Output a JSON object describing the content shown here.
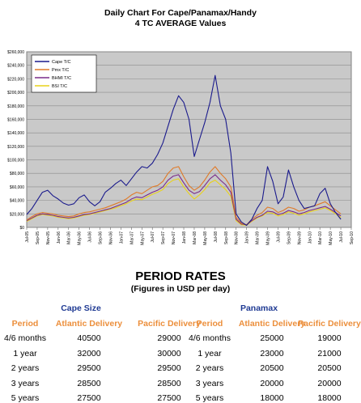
{
  "title_line1": "Daily Chart For Cape/Panamax/Handy",
  "title_line2": "4 TC AVERAGE Values",
  "chart_data": {
    "type": "line",
    "y_ticks": [
      "$0",
      "$20,000",
      "$40,000",
      "$60,000",
      "$80,000",
      "$100,000",
      "$120,000",
      "$140,000",
      "$160,000",
      "$180,000",
      "$200,000",
      "$220,000",
      "$240,000",
      "$260,000"
    ],
    "ylim": [
      0,
      260000
    ],
    "x_ticks": [
      "Jul-05",
      "Sep-05",
      "Nov-05",
      "Jan-06",
      "Mar-06",
      "May-06",
      "Jul-06",
      "Sep-06",
      "Nov-06",
      "Jan-07",
      "Mar-07",
      "May-07",
      "Jul-07",
      "Sep-07",
      "Nov-07",
      "Jan-08",
      "Mar-08",
      "May-08",
      "Jul-08",
      "Sep-08",
      "Nov-08",
      "Jan-09",
      "Mar-09",
      "May-09",
      "Jul-09",
      "Sep-09",
      "Nov-09",
      "Jan-10",
      "Mar-10",
      "May-10",
      "Jul-10",
      "Sep-10"
    ],
    "xlim": [
      0,
      62
    ],
    "grid": true,
    "legend_position": "top-left",
    "series": [
      {
        "name": "Cape T/C",
        "color": "#1a1a8c",
        "points": [
          [
            0,
            19000
          ],
          [
            1,
            28000
          ],
          [
            2,
            40000
          ],
          [
            3,
            52000
          ],
          [
            4,
            55000
          ],
          [
            5,
            47000
          ],
          [
            6,
            42000
          ],
          [
            7,
            36000
          ],
          [
            8,
            33000
          ],
          [
            9,
            35000
          ],
          [
            10,
            44000
          ],
          [
            11,
            48000
          ],
          [
            12,
            38000
          ],
          [
            13,
            32000
          ],
          [
            14,
            38000
          ],
          [
            15,
            52000
          ],
          [
            16,
            58000
          ],
          [
            17,
            65000
          ],
          [
            18,
            70000
          ],
          [
            19,
            62000
          ],
          [
            20,
            72000
          ],
          [
            21,
            82000
          ],
          [
            22,
            90000
          ],
          [
            23,
            88000
          ],
          [
            24,
            95000
          ],
          [
            25,
            108000
          ],
          [
            26,
            125000
          ],
          [
            27,
            150000
          ],
          [
            28,
            175000
          ],
          [
            29,
            195000
          ],
          [
            30,
            185000
          ],
          [
            31,
            160000
          ],
          [
            32,
            105000
          ],
          [
            33,
            130000
          ],
          [
            34,
            155000
          ],
          [
            35,
            185000
          ],
          [
            36,
            225000
          ],
          [
            37,
            180000
          ],
          [
            38,
            160000
          ],
          [
            39,
            110000
          ],
          [
            40,
            20000
          ],
          [
            41,
            8000
          ],
          [
            42,
            3000
          ],
          [
            43,
            12000
          ],
          [
            44,
            28000
          ],
          [
            45,
            40000
          ],
          [
            46,
            90000
          ],
          [
            47,
            68000
          ],
          [
            48,
            35000
          ],
          [
            49,
            45000
          ],
          [
            50,
            85000
          ],
          [
            51,
            60000
          ],
          [
            52,
            40000
          ],
          [
            53,
            28000
          ],
          [
            54,
            30000
          ],
          [
            55,
            32000
          ],
          [
            56,
            50000
          ],
          [
            57,
            58000
          ],
          [
            58,
            35000
          ],
          [
            59,
            22000
          ],
          [
            60,
            12000
          ]
        ]
      },
      {
        "name": "Pmx T/C",
        "color": "#e07a28",
        "points": [
          [
            0,
            11000
          ],
          [
            1,
            16000
          ],
          [
            2,
            20000
          ],
          [
            3,
            22000
          ],
          [
            4,
            21000
          ],
          [
            5,
            20000
          ],
          [
            6,
            18000
          ],
          [
            7,
            17000
          ],
          [
            8,
            16000
          ],
          [
            9,
            17000
          ],
          [
            10,
            20000
          ],
          [
            11,
            22000
          ],
          [
            12,
            23000
          ],
          [
            13,
            25000
          ],
          [
            14,
            27000
          ],
          [
            15,
            29000
          ],
          [
            16,
            32000
          ],
          [
            17,
            35000
          ],
          [
            18,
            38000
          ],
          [
            19,
            42000
          ],
          [
            20,
            48000
          ],
          [
            21,
            52000
          ],
          [
            22,
            50000
          ],
          [
            23,
            55000
          ],
          [
            24,
            60000
          ],
          [
            25,
            62000
          ],
          [
            26,
            68000
          ],
          [
            27,
            80000
          ],
          [
            28,
            88000
          ],
          [
            29,
            90000
          ],
          [
            30,
            75000
          ],
          [
            31,
            62000
          ],
          [
            32,
            55000
          ],
          [
            33,
            60000
          ],
          [
            34,
            70000
          ],
          [
            35,
            82000
          ],
          [
            36,
            90000
          ],
          [
            37,
            80000
          ],
          [
            38,
            72000
          ],
          [
            39,
            60000
          ],
          [
            40,
            15000
          ],
          [
            41,
            6000
          ],
          [
            42,
            4000
          ],
          [
            43,
            12000
          ],
          [
            44,
            18000
          ],
          [
            45,
            22000
          ],
          [
            46,
            30000
          ],
          [
            47,
            28000
          ],
          [
            48,
            22000
          ],
          [
            49,
            25000
          ],
          [
            50,
            30000
          ],
          [
            51,
            28000
          ],
          [
            52,
            24000
          ],
          [
            53,
            26000
          ],
          [
            54,
            30000
          ],
          [
            55,
            32000
          ],
          [
            56,
            35000
          ],
          [
            57,
            38000
          ],
          [
            58,
            32000
          ],
          [
            59,
            26000
          ],
          [
            60,
            20000
          ]
        ]
      },
      {
        "name": "BHMI T/C",
        "color": "#7a2a8a",
        "points": [
          [
            0,
            10000
          ],
          [
            1,
            14000
          ],
          [
            2,
            18000
          ],
          [
            3,
            20000
          ],
          [
            4,
            19000
          ],
          [
            5,
            18000
          ],
          [
            6,
            16000
          ],
          [
            7,
            15000
          ],
          [
            8,
            14000
          ],
          [
            9,
            15000
          ],
          [
            10,
            17000
          ],
          [
            11,
            19000
          ],
          [
            12,
            20000
          ],
          [
            13,
            22000
          ],
          [
            14,
            24000
          ],
          [
            15,
            26000
          ],
          [
            16,
            28000
          ],
          [
            17,
            31000
          ],
          [
            18,
            34000
          ],
          [
            19,
            37000
          ],
          [
            20,
            42000
          ],
          [
            21,
            45000
          ],
          [
            22,
            44000
          ],
          [
            23,
            48000
          ],
          [
            24,
            52000
          ],
          [
            25,
            55000
          ],
          [
            26,
            60000
          ],
          [
            27,
            70000
          ],
          [
            28,
            76000
          ],
          [
            29,
            78000
          ],
          [
            30,
            66000
          ],
          [
            31,
            55000
          ],
          [
            32,
            50000
          ],
          [
            33,
            53000
          ],
          [
            34,
            62000
          ],
          [
            35,
            72000
          ],
          [
            36,
            78000
          ],
          [
            37,
            70000
          ],
          [
            38,
            63000
          ],
          [
            39,
            52000
          ],
          [
            40,
            12000
          ],
          [
            41,
            5000
          ],
          [
            42,
            4000
          ],
          [
            43,
            10000
          ],
          [
            44,
            15000
          ],
          [
            45,
            18000
          ],
          [
            46,
            24000
          ],
          [
            47,
            23000
          ],
          [
            48,
            19000
          ],
          [
            49,
            21000
          ],
          [
            50,
            25000
          ],
          [
            51,
            23000
          ],
          [
            52,
            20000
          ],
          [
            53,
            22000
          ],
          [
            54,
            25000
          ],
          [
            55,
            27000
          ],
          [
            56,
            29000
          ],
          [
            57,
            31000
          ],
          [
            58,
            27000
          ],
          [
            59,
            22000
          ],
          [
            60,
            17000
          ]
        ]
      },
      {
        "name": "BSI T/C",
        "color": "#e8d21a",
        "points": [
          [
            0,
            9000
          ],
          [
            1,
            13000
          ],
          [
            2,
            17000
          ],
          [
            3,
            19000
          ],
          [
            4,
            18000
          ],
          [
            5,
            17000
          ],
          [
            6,
            15000
          ],
          [
            7,
            14000
          ],
          [
            8,
            13000
          ],
          [
            9,
            14000
          ],
          [
            10,
            16000
          ],
          [
            11,
            18000
          ],
          [
            12,
            19000
          ],
          [
            13,
            21000
          ],
          [
            14,
            23000
          ],
          [
            15,
            25000
          ],
          [
            16,
            27000
          ],
          [
            17,
            29000
          ],
          [
            18,
            32000
          ],
          [
            19,
            35000
          ],
          [
            20,
            39000
          ],
          [
            21,
            42000
          ],
          [
            22,
            41000
          ],
          [
            23,
            45000
          ],
          [
            24,
            49000
          ],
          [
            25,
            52000
          ],
          [
            26,
            56000
          ],
          [
            27,
            65000
          ],
          [
            28,
            70000
          ],
          [
            29,
            72000
          ],
          [
            30,
            60000
          ],
          [
            31,
            50000
          ],
          [
            32,
            42000
          ],
          [
            33,
            48000
          ],
          [
            34,
            56000
          ],
          [
            35,
            66000
          ],
          [
            36,
            70000
          ],
          [
            37,
            63000
          ],
          [
            38,
            56000
          ],
          [
            39,
            46000
          ],
          [
            40,
            10000
          ],
          [
            41,
            4000
          ],
          [
            42,
            3000
          ],
          [
            43,
            9000
          ],
          [
            44,
            14000
          ],
          [
            45,
            17000
          ],
          [
            46,
            22000
          ],
          [
            47,
            21000
          ],
          [
            48,
            17000
          ],
          [
            49,
            19000
          ],
          [
            50,
            23000
          ],
          [
            51,
            21000
          ],
          [
            52,
            18000
          ],
          [
            53,
            20000
          ],
          [
            54,
            23000
          ],
          [
            55,
            25000
          ],
          [
            56,
            27000
          ],
          [
            57,
            29000
          ],
          [
            58,
            25000
          ],
          [
            59,
            20000
          ],
          [
            60,
            15000
          ]
        ]
      }
    ]
  },
  "rates": {
    "title": "PERIOD RATES",
    "subtitle": "(Figures in USD per day)",
    "cape": {
      "name": "Cape Size",
      "headers": [
        "Period",
        "Atlantic Delivery",
        "Pacific Delivery"
      ],
      "rows": [
        [
          "4/6 months",
          "40500",
          "29000"
        ],
        [
          "1 year",
          "32000",
          "30000"
        ],
        [
          "2 years",
          "29500",
          "29500"
        ],
        [
          "3 years",
          "28500",
          "28500"
        ],
        [
          "5 years",
          "27500",
          "27500"
        ]
      ]
    },
    "panamax": {
      "name": "Panamax",
      "headers": [
        "Period",
        "Atlantic Delivery",
        "Pacific Delivery"
      ],
      "rows": [
        [
          "4/6 months",
          "25000",
          "19000"
        ],
        [
          "1 year",
          "23000",
          "21000"
        ],
        [
          "2 years",
          "20500",
          "20500"
        ],
        [
          "3 years",
          "20000",
          "20000"
        ],
        [
          "5 years",
          "18000",
          "18000"
        ]
      ]
    }
  }
}
